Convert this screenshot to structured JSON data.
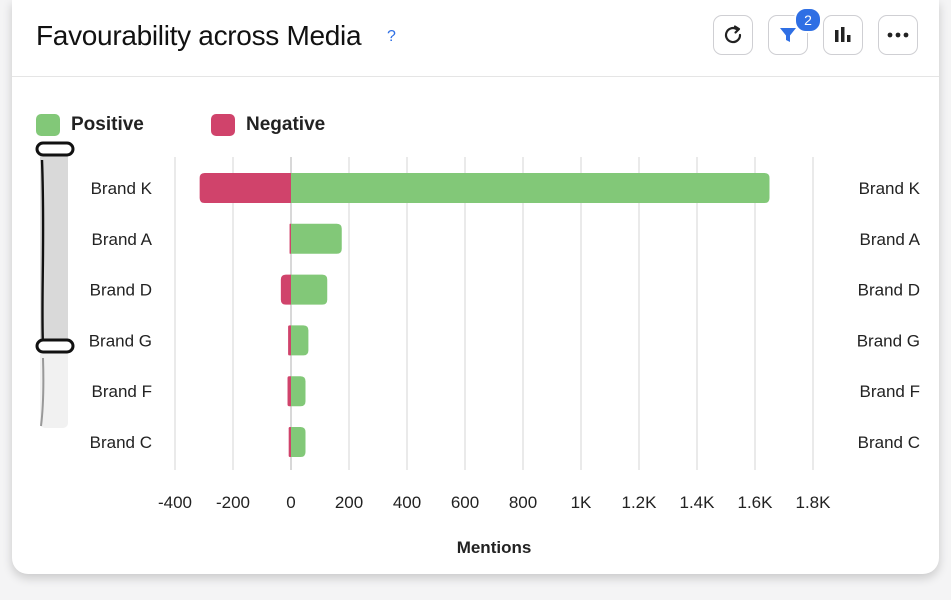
{
  "header": {
    "title": "Favourability across Media",
    "help_symbol": "?",
    "filter_count": "2"
  },
  "icons": {
    "refresh": "refresh-icon",
    "filter": "filter-icon",
    "chart_type": "bar-chart-icon",
    "more": "more-icon"
  },
  "colors": {
    "positive": "#82c878",
    "negative": "#d0436b",
    "grid": "#dcdcdc",
    "zero_line": "#bdbdbd"
  },
  "chart_data": {
    "type": "bar",
    "orientation": "horizontal",
    "stacked": "diverging",
    "categories": [
      "Brand K",
      "Brand A",
      "Brand D",
      "Brand G",
      "Brand F",
      "Brand C"
    ],
    "series": [
      {
        "name": "Positive",
        "values": [
          1650,
          175,
          125,
          60,
          50,
          50
        ]
      },
      {
        "name": "Negative",
        "values": [
          -315,
          -5,
          -35,
          -10,
          -12,
          -8
        ]
      }
    ],
    "xlabel": "Mentions",
    "xlim": [
      -400,
      1800
    ],
    "xticks": [
      -400,
      -200,
      0,
      200,
      400,
      600,
      800,
      1000,
      1200,
      1400,
      1600,
      1800
    ],
    "xtick_labels": [
      "-400",
      "-200",
      "0",
      "200",
      "400",
      "600",
      "800",
      "1K",
      "1.2K",
      "1.4K",
      "1.6K",
      "1.8K"
    ],
    "grid": true,
    "legend_position": "top-left",
    "category_labels_both_sides": true
  }
}
